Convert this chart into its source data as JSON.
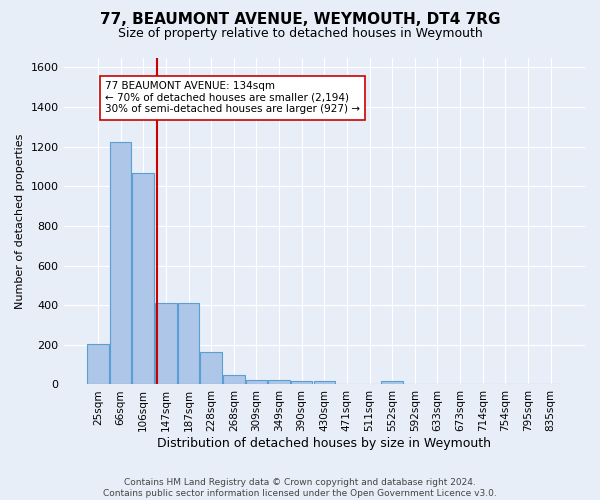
{
  "title": "77, BEAUMONT AVENUE, WEYMOUTH, DT4 7RG",
  "subtitle": "Size of property relative to detached houses in Weymouth",
  "xlabel": "Distribution of detached houses by size in Weymouth",
  "ylabel": "Number of detached properties",
  "categories": [
    "25sqm",
    "66sqm",
    "106sqm",
    "147sqm",
    "187sqm",
    "228sqm",
    "268sqm",
    "309sqm",
    "349sqm",
    "390sqm",
    "430sqm",
    "471sqm",
    "511sqm",
    "552sqm",
    "592sqm",
    "633sqm",
    "673sqm",
    "714sqm",
    "754sqm",
    "795sqm",
    "835sqm"
  ],
  "values": [
    205,
    1225,
    1065,
    410,
    410,
    165,
    50,
    25,
    22,
    16,
    15,
    0,
    0,
    15,
    0,
    0,
    0,
    0,
    0,
    0,
    0
  ],
  "bar_color": "#aec6e8",
  "bar_edge_color": "#5a9fd4",
  "vline_x_index": 2.6,
  "vline_color": "#cc0000",
  "annotation_text": "77 BEAUMONT AVENUE: 134sqm\n← 70% of detached houses are smaller (2,194)\n30% of semi-detached houses are larger (927) →",
  "annotation_box_color": "#ffffff",
  "annotation_box_edge": "#cc0000",
  "ylim": [
    0,
    1650
  ],
  "yticks": [
    0,
    200,
    400,
    600,
    800,
    1000,
    1200,
    1400,
    1600
  ],
  "bg_color": "#e8eef8",
  "grid_color": "#ffffff",
  "footer": "Contains HM Land Registry data © Crown copyright and database right 2024.\nContains public sector information licensed under the Open Government Licence v3.0."
}
